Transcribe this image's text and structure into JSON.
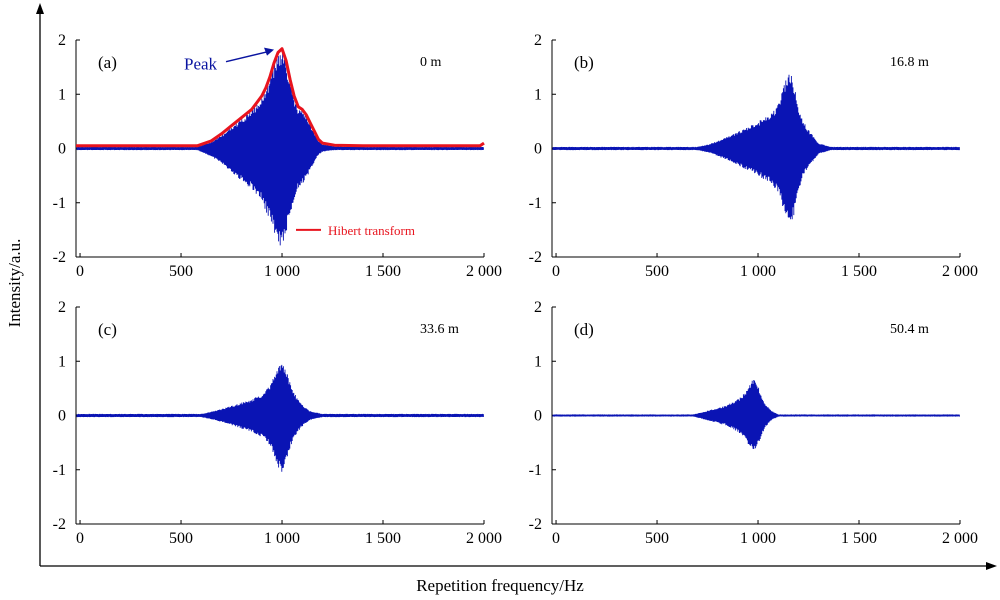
{
  "figure": {
    "xlabel": "Repetition frequency/Hz",
    "ylabel": "Intensity/a.u.",
    "series_color": "#0a14b4",
    "envelope_color": "#e8141e"
  },
  "chart_data": [
    {
      "type": "area",
      "panel": "(a)",
      "distance_label": "0 m",
      "xlim": [
        -20,
        2000
      ],
      "ylim": [
        -2,
        2
      ],
      "x_ticks": [
        0,
        500,
        1000,
        1500,
        2000
      ],
      "x_tick_labels": [
        "0",
        "500",
        "1 000",
        "1 500",
        "2 000"
      ],
      "y_ticks": [
        -2,
        -1,
        0,
        1,
        2
      ],
      "y_tick_labels": [
        "-2",
        "-1",
        "0",
        "1",
        "2"
      ],
      "series": [
        {
          "values_x": [
            -20,
            400,
            580,
            650,
            700,
            750,
            800,
            850,
            880,
            900,
            920,
            940,
            960,
            980,
            1000,
            1020,
            1040,
            1060,
            1080,
            1100,
            1120,
            1140,
            1160,
            1180,
            1200,
            1260,
            1400,
            2000
          ],
          "upper": [
            0.03,
            0.03,
            0.03,
            0.12,
            0.25,
            0.4,
            0.55,
            0.7,
            0.85,
            0.95,
            1.1,
            1.3,
            1.55,
            1.75,
            1.82,
            1.6,
            1.25,
            0.95,
            0.75,
            0.7,
            0.6,
            0.45,
            0.3,
            0.15,
            0.08,
            0.04,
            0.03,
            0.03
          ],
          "lower": [
            -0.03,
            -0.03,
            -0.03,
            -0.15,
            -0.28,
            -0.45,
            -0.6,
            -0.75,
            -0.9,
            -1.0,
            -1.15,
            -1.35,
            -1.55,
            -1.78,
            -1.85,
            -1.6,
            -1.25,
            -0.95,
            -0.75,
            -0.68,
            -0.55,
            -0.4,
            -0.25,
            -0.12,
            -0.06,
            -0.03,
            -0.03,
            -0.03
          ]
        },
        {
          "name": "Hibert transform",
          "type": "line",
          "values_x": [
            -20,
            400,
            580,
            650,
            700,
            750,
            800,
            850,
            880,
            900,
            920,
            940,
            960,
            980,
            1000,
            1020,
            1040,
            1060,
            1080,
            1100,
            1120,
            1140,
            1160,
            1180,
            1200,
            1260,
            1400,
            1980,
            2000
          ],
          "values_y": [
            0.05,
            0.05,
            0.05,
            0.14,
            0.27,
            0.42,
            0.57,
            0.72,
            0.87,
            0.97,
            1.12,
            1.32,
            1.57,
            1.77,
            1.84,
            1.62,
            1.27,
            0.97,
            0.77,
            0.72,
            0.62,
            0.47,
            0.32,
            0.17,
            0.1,
            0.06,
            0.05,
            0.05,
            0.1
          ]
        }
      ],
      "annotations": [
        {
          "text": "Peak",
          "x": 1000,
          "y": 1.84
        }
      ],
      "legend": {
        "label": "Hibert transform",
        "placement": "lower-right"
      }
    },
    {
      "type": "area",
      "panel": "(b)",
      "distance_label": "16.8 m",
      "xlim": [
        -20,
        2000
      ],
      "ylim": [
        -2,
        2
      ],
      "x_ticks": [
        0,
        500,
        1000,
        1500,
        2000
      ],
      "x_tick_labels": [
        "0",
        "500",
        "1 000",
        "1 500",
        "2 000"
      ],
      "y_ticks": [
        -2,
        -1,
        0,
        1,
        2
      ],
      "y_tick_labels": [
        "-2",
        "-1",
        "0",
        "1",
        "2"
      ],
      "series": [
        {
          "values_x": [
            -20,
            700,
            760,
            850,
            950,
            1000,
            1050,
            1080,
            1100,
            1120,
            1140,
            1160,
            1180,
            1200,
            1220,
            1240,
            1270,
            1300,
            1360,
            2000
          ],
          "upper": [
            0.03,
            0.03,
            0.08,
            0.22,
            0.4,
            0.5,
            0.62,
            0.72,
            0.85,
            1.05,
            1.3,
            1.42,
            1.2,
            0.8,
            0.55,
            0.4,
            0.25,
            0.1,
            0.03,
            0.03
          ],
          "lower": [
            -0.03,
            -0.03,
            -0.08,
            -0.22,
            -0.4,
            -0.5,
            -0.62,
            -0.72,
            -0.85,
            -1.05,
            -1.3,
            -1.45,
            -1.2,
            -0.8,
            -0.55,
            -0.4,
            -0.25,
            -0.1,
            -0.03,
            -0.03
          ]
        }
      ]
    },
    {
      "type": "area",
      "panel": "(c)",
      "distance_label": "33.6 m",
      "xlim": [
        -20,
        2000
      ],
      "ylim": [
        -2,
        2
      ],
      "x_ticks": [
        0,
        500,
        1000,
        1500,
        2000
      ],
      "x_tick_labels": [
        "0",
        "500",
        "1 000",
        "1 500",
        "2 000"
      ],
      "y_ticks": [
        -2,
        -1,
        0,
        1,
        2
      ],
      "y_tick_labels": [
        "-2",
        "-1",
        "0",
        "1",
        "2"
      ],
      "series": [
        {
          "values_x": [
            -20,
            600,
            650,
            700,
            750,
            800,
            850,
            900,
            940,
            960,
            980,
            1000,
            1020,
            1040,
            1060,
            1080,
            1100,
            1140,
            1200,
            2000
          ],
          "upper": [
            0.03,
            0.03,
            0.07,
            0.12,
            0.18,
            0.24,
            0.3,
            0.4,
            0.55,
            0.72,
            0.95,
            1.05,
            0.85,
            0.6,
            0.42,
            0.3,
            0.2,
            0.08,
            0.03,
            0.03
          ],
          "lower": [
            -0.03,
            -0.03,
            -0.07,
            -0.12,
            -0.18,
            -0.24,
            -0.3,
            -0.4,
            -0.55,
            -0.72,
            -0.95,
            -1.07,
            -0.85,
            -0.6,
            -0.42,
            -0.3,
            -0.2,
            -0.08,
            -0.03,
            -0.03
          ]
        }
      ]
    },
    {
      "type": "area",
      "panel": "(d)",
      "distance_label": "50.4 m",
      "xlim": [
        -20,
        2000
      ],
      "ylim": [
        -2,
        2
      ],
      "x_ticks": [
        0,
        500,
        1000,
        1500,
        2000
      ],
      "x_tick_labels": [
        "0",
        "500",
        "1 000",
        "1 500",
        "2 000"
      ],
      "y_ticks": [
        -2,
        -1,
        0,
        1,
        2
      ],
      "y_tick_labels": [
        "-2",
        "-1",
        "0",
        "1",
        "2"
      ],
      "series": [
        {
          "values_x": [
            -20,
            680,
            720,
            780,
            840,
            900,
            940,
            960,
            980,
            1000,
            1020,
            1040,
            1070,
            1100,
            2000
          ],
          "upper": [
            0.02,
            0.02,
            0.06,
            0.12,
            0.18,
            0.3,
            0.45,
            0.6,
            0.68,
            0.55,
            0.35,
            0.2,
            0.08,
            0.02,
            0.02
          ],
          "lower": [
            -0.02,
            -0.02,
            -0.06,
            -0.12,
            -0.18,
            -0.3,
            -0.45,
            -0.6,
            -0.7,
            -0.55,
            -0.35,
            -0.2,
            -0.08,
            -0.02,
            -0.02
          ]
        }
      ]
    }
  ]
}
